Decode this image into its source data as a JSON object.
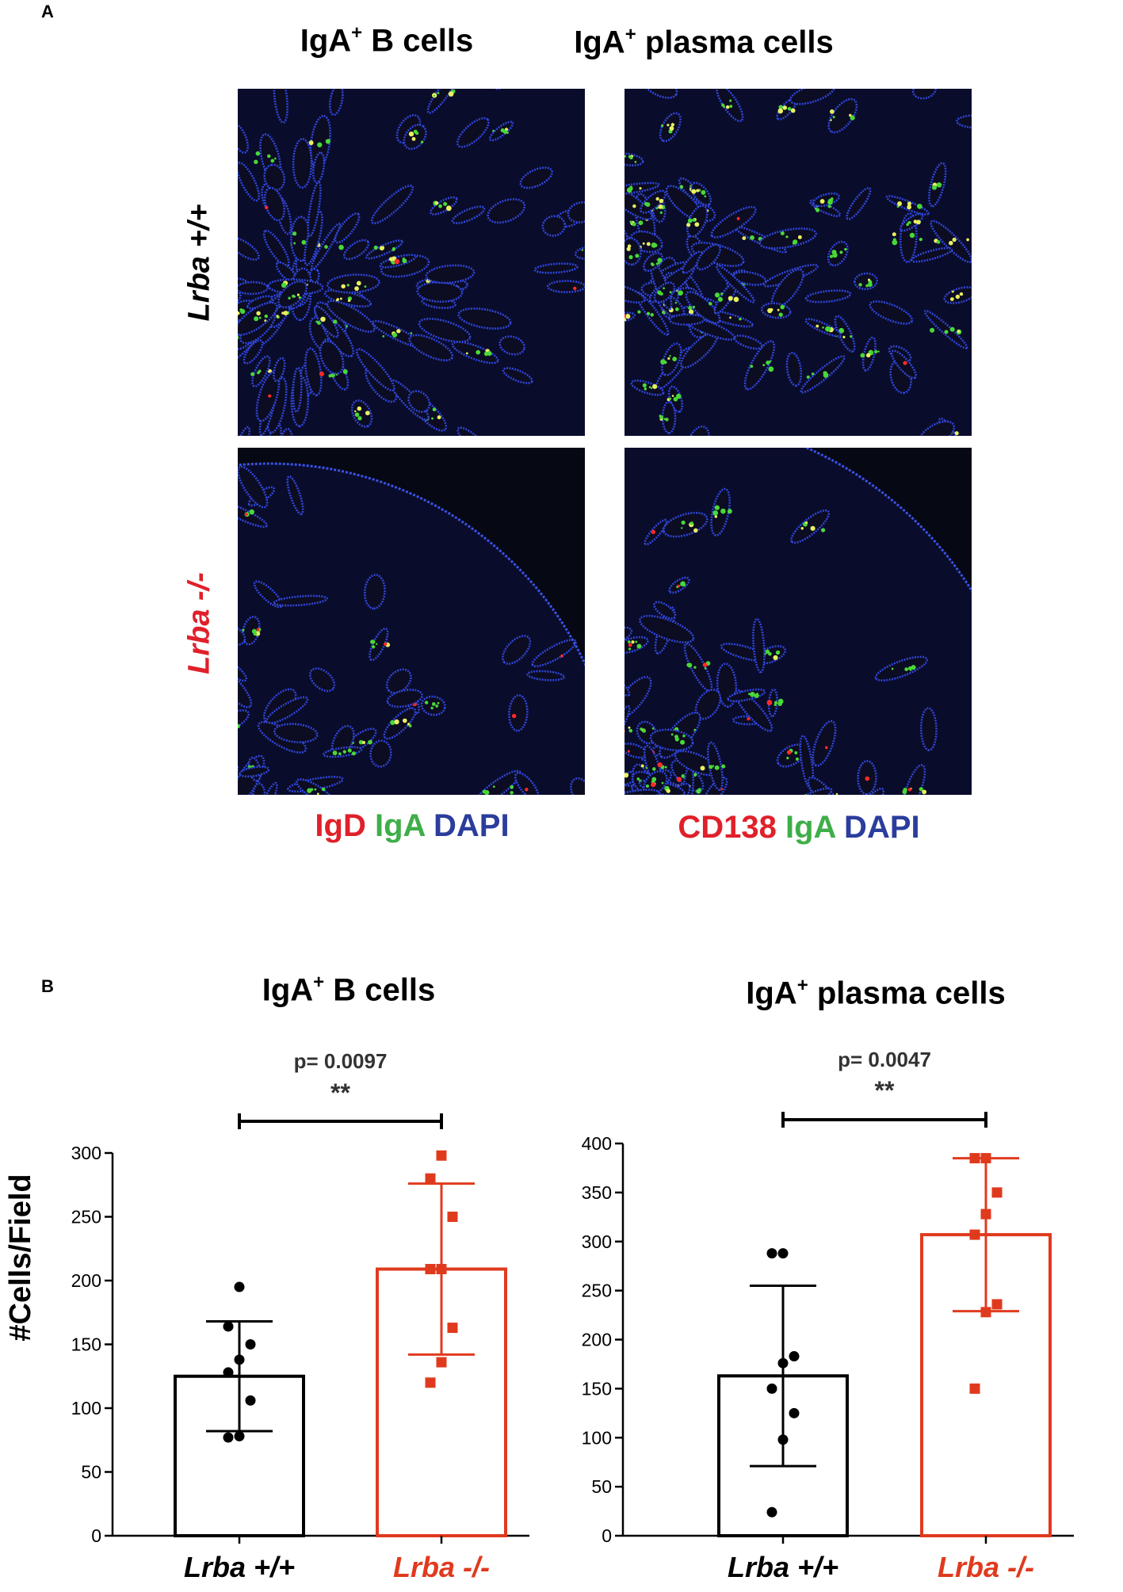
{
  "panel_a": {
    "letter": "A",
    "col_titles": [
      {
        "main": "IgA",
        "sup": "+",
        "rest": " B cells"
      },
      {
        "main": "IgA",
        "sup": "+",
        "rest": " plasma cells"
      }
    ],
    "row_labels": [
      "Lrba +/+",
      "Lrba -/-"
    ],
    "legends": [
      [
        {
          "text": "IgD",
          "color": "#e0202a"
        },
        {
          "text": " IgA",
          "color": "#3fae49"
        },
        {
          "text": " DAPI",
          "color": "#2b3d9c"
        }
      ],
      [
        {
          "text": "CD138",
          "color": "#e0202a"
        },
        {
          "text": " IgA",
          "color": "#3fae49"
        },
        {
          "text": " DAPI",
          "color": "#2b3d9c"
        }
      ]
    ]
  },
  "panel_b": {
    "letter": "B",
    "ylabel": "#Cells/Field",
    "colors": {
      "wt": "#000000",
      "ko": "#e03a1e"
    },
    "chart_data": [
      {
        "type": "bar",
        "title": {
          "main": "IgA",
          "sup": "+",
          "rest": " B cells"
        },
        "categories": [
          "Lrba +/+",
          "Lrba -/-"
        ],
        "ylim": [
          0,
          300
        ],
        "yticks": [
          0,
          50,
          100,
          150,
          200,
          250,
          300
        ],
        "means": [
          125,
          209
        ],
        "sd": [
          43,
          67
        ],
        "points": [
          [
            195,
            164,
            150,
            138,
            128,
            106,
            78,
            77
          ],
          [
            298,
            280,
            250,
            209,
            209,
            163,
            136,
            120
          ]
        ],
        "annotation": {
          "p": "p= 0.0097",
          "stars": "**"
        }
      },
      {
        "type": "bar",
        "title": {
          "main": "IgA",
          "sup": "+",
          "rest": " plasma cells"
        },
        "categories": [
          "Lrba +/+",
          "Lrba -/-"
        ],
        "ylim": [
          0,
          400
        ],
        "yticks": [
          0,
          50,
          100,
          150,
          200,
          250,
          300,
          350,
          400
        ],
        "means": [
          163,
          307
        ],
        "sd": [
          92,
          78
        ],
        "points": [
          [
            288,
            288,
            183,
            176,
            150,
            125,
            98,
            24
          ],
          [
            385,
            385,
            350,
            328,
            307,
            236,
            228,
            150
          ]
        ],
        "annotation": {
          "p": "p= 0.0047",
          "stars": "**"
        }
      }
    ]
  }
}
